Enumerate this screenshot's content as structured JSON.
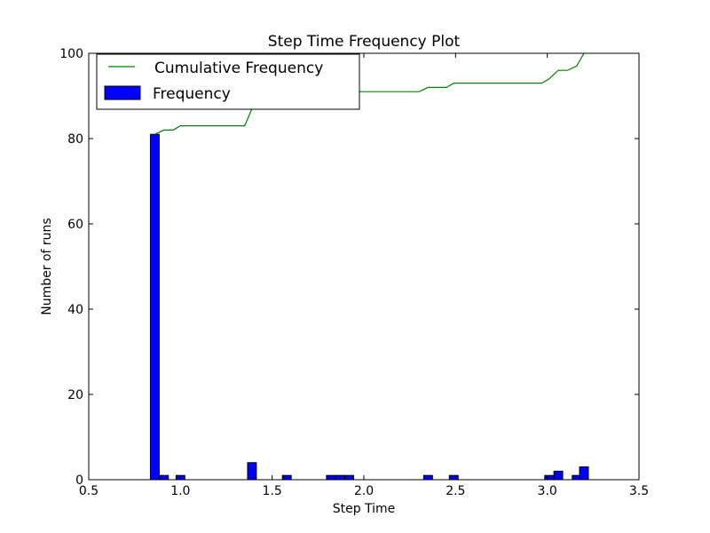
{
  "chart_data": {
    "type": "bar",
    "title": "Step Time Frequency Plot",
    "xlabel": "Step Time",
    "ylabel": "Number of runs",
    "xlim": [
      0.5,
      3.5
    ],
    "ylim": [
      0,
      100
    ],
    "xticks": [
      "0.5",
      "1.0",
      "1.5",
      "2.0",
      "2.5",
      "3.0",
      "3.5"
    ],
    "yticks": [
      "0",
      "20",
      "40",
      "60",
      "80",
      "100"
    ],
    "grid": false,
    "legend_position": "top-left",
    "legend": {
      "line_label": "Cumulative Frequency",
      "bar_label": "Frequency"
    },
    "bin_width": 0.048,
    "bars": [
      {
        "x": 0.86,
        "value": 81
      },
      {
        "x": 0.91,
        "value": 1
      },
      {
        "x": 1.0,
        "value": 1
      },
      {
        "x": 1.39,
        "value": 4
      },
      {
        "x": 1.58,
        "value": 1
      },
      {
        "x": 1.82,
        "value": 1
      },
      {
        "x": 1.87,
        "value": 1
      },
      {
        "x": 1.92,
        "value": 1
      },
      {
        "x": 2.35,
        "value": 1
      },
      {
        "x": 2.49,
        "value": 1
      },
      {
        "x": 3.01,
        "value": 1
      },
      {
        "x": 3.06,
        "value": 2
      },
      {
        "x": 3.16,
        "value": 1
      },
      {
        "x": 3.2,
        "value": 3
      }
    ],
    "cumulative": [
      {
        "x": 0.86,
        "y": 81
      },
      {
        "x": 0.91,
        "y": 82
      },
      {
        "x": 0.96,
        "y": 82
      },
      {
        "x": 1.0,
        "y": 83
      },
      {
        "x": 1.35,
        "y": 83
      },
      {
        "x": 1.39,
        "y": 87
      },
      {
        "x": 1.53,
        "y": 87
      },
      {
        "x": 1.58,
        "y": 88
      },
      {
        "x": 1.77,
        "y": 88
      },
      {
        "x": 1.82,
        "y": 89
      },
      {
        "x": 1.87,
        "y": 90
      },
      {
        "x": 1.92,
        "y": 91
      },
      {
        "x": 2.3,
        "y": 91
      },
      {
        "x": 2.35,
        "y": 92
      },
      {
        "x": 2.45,
        "y": 92
      },
      {
        "x": 2.49,
        "y": 93
      },
      {
        "x": 2.97,
        "y": 93
      },
      {
        "x": 3.01,
        "y": 94
      },
      {
        "x": 3.06,
        "y": 96
      },
      {
        "x": 3.11,
        "y": 96
      },
      {
        "x": 3.16,
        "y": 97
      },
      {
        "x": 3.2,
        "y": 100
      }
    ],
    "colors": {
      "bar_fill": "#0000ff",
      "bar_edge": "#000000",
      "line": "#008000"
    }
  }
}
